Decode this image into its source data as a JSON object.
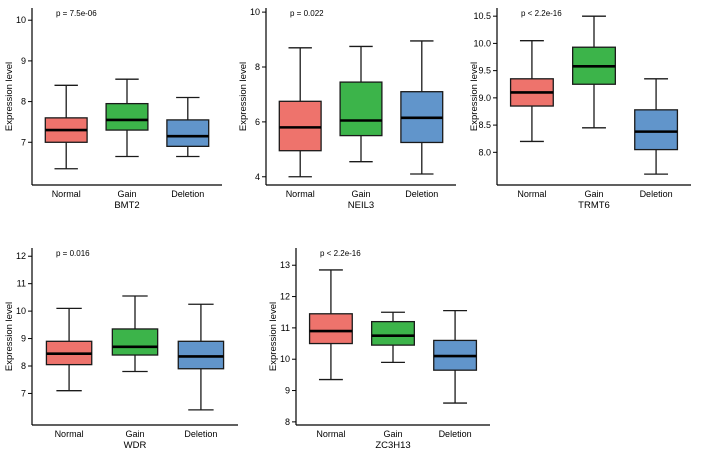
{
  "figure": {
    "background": "#ffffff",
    "group_colors": {
      "Normal": "#EE736C",
      "Gain": "#3CB44A",
      "Deletion": "#6195CB"
    }
  },
  "chart_data": [
    {
      "type": "box",
      "title": "BMT2",
      "p_label": "p = 7.5e-06",
      "ylabel": "Expression level",
      "categories": [
        "Normal",
        "Gain",
        "Deletion"
      ],
      "ylim": [
        5.95,
        10.3
      ],
      "yticks": [
        7,
        8,
        9,
        10
      ],
      "ytick_labels": [
        "7",
        "8",
        "9",
        "10"
      ],
      "grid": false,
      "series": [
        {
          "name": "Normal",
          "color": "#EE736C",
          "whisker_low": 6.35,
          "q1": 7.0,
          "median": 7.3,
          "q3": 7.6,
          "whisker_high": 8.4
        },
        {
          "name": "Gain",
          "color": "#3CB44A",
          "whisker_low": 6.65,
          "q1": 7.3,
          "median": 7.55,
          "q3": 7.95,
          "whisker_high": 8.55
        },
        {
          "name": "Deletion",
          "color": "#6195CB",
          "whisker_low": 6.65,
          "q1": 6.9,
          "median": 7.15,
          "q3": 7.55,
          "whisker_high": 8.1
        }
      ]
    },
    {
      "type": "box",
      "title": "NEIL3",
      "p_label": "p = 0.022",
      "ylabel": "Expression level",
      "categories": [
        "Normal",
        "Gain",
        "Deletion"
      ],
      "ylim": [
        3.7,
        10.15
      ],
      "yticks": [
        4,
        6,
        8,
        10
      ],
      "ytick_labels": [
        "4",
        "6",
        "8",
        "10"
      ],
      "grid": false,
      "series": [
        {
          "name": "Normal",
          "color": "#EE736C",
          "whisker_low": 4.0,
          "q1": 4.95,
          "median": 5.8,
          "q3": 6.75,
          "whisker_high": 8.7
        },
        {
          "name": "Gain",
          "color": "#3CB44A",
          "whisker_low": 4.55,
          "q1": 5.5,
          "median": 6.05,
          "q3": 7.45,
          "whisker_high": 8.75
        },
        {
          "name": "Deletion",
          "color": "#6195CB",
          "whisker_low": 4.1,
          "q1": 5.25,
          "median": 6.15,
          "q3": 7.1,
          "whisker_high": 8.95
        }
      ]
    },
    {
      "type": "box",
      "title": "TRMT6",
      "p_label": "p < 2.2e-16",
      "ylabel": "Expression level",
      "categories": [
        "Normal",
        "Gain",
        "Deletion"
      ],
      "ylim": [
        7.4,
        10.65
      ],
      "yticks": [
        8,
        8.5,
        9,
        9.5,
        10,
        10.5
      ],
      "ytick_labels": [
        "8.0",
        "8.5",
        "9.0",
        "9.5",
        "10.0",
        "10.5"
      ],
      "grid": false,
      "series": [
        {
          "name": "Normal",
          "color": "#EE736C",
          "whisker_low": 8.2,
          "q1": 8.85,
          "median": 9.1,
          "q3": 9.35,
          "whisker_high": 10.05
        },
        {
          "name": "Gain",
          "color": "#3CB44A",
          "whisker_low": 8.45,
          "q1": 9.25,
          "median": 9.58,
          "q3": 9.93,
          "whisker_high": 10.5
        },
        {
          "name": "Deletion",
          "color": "#6195CB",
          "whisker_low": 7.6,
          "q1": 8.05,
          "median": 8.38,
          "q3": 8.78,
          "whisker_high": 9.35
        }
      ]
    },
    {
      "type": "box",
      "title": "WDR",
      "p_label": "p = 0.016",
      "ylabel": "Expression level",
      "categories": [
        "Normal",
        "Gain",
        "Deletion"
      ],
      "ylim": [
        5.85,
        12.3
      ],
      "yticks": [
        7,
        8,
        9,
        10,
        11,
        12
      ],
      "ytick_labels": [
        "7",
        "8",
        "9",
        "10",
        "11",
        "12"
      ],
      "grid": false,
      "series": [
        {
          "name": "Normal",
          "color": "#EE736C",
          "whisker_low": 7.1,
          "q1": 8.05,
          "median": 8.45,
          "q3": 8.9,
          "whisker_high": 10.1
        },
        {
          "name": "Gain",
          "color": "#3CB44A",
          "whisker_low": 7.8,
          "q1": 8.4,
          "median": 8.7,
          "q3": 9.35,
          "whisker_high": 10.55
        },
        {
          "name": "Deletion",
          "color": "#6195CB",
          "whisker_low": 6.4,
          "q1": 7.9,
          "median": 8.35,
          "q3": 8.9,
          "whisker_high": 10.25
        }
      ]
    },
    {
      "type": "box",
      "title": "ZC3H13",
      "p_label": "p < 2.2e-16",
      "ylabel": "Expression level",
      "categories": [
        "Normal",
        "Gain",
        "Deletion"
      ],
      "ylim": [
        7.9,
        13.55
      ],
      "yticks": [
        8,
        9,
        10,
        11,
        12,
        13
      ],
      "ytick_labels": [
        "8",
        "9",
        "10",
        "11",
        "12",
        "13"
      ],
      "grid": false,
      "series": [
        {
          "name": "Normal",
          "color": "#EE736C",
          "whisker_low": 9.35,
          "q1": 10.5,
          "median": 10.9,
          "q3": 11.45,
          "whisker_high": 12.85
        },
        {
          "name": "Gain",
          "color": "#3CB44A",
          "whisker_low": 9.9,
          "q1": 10.45,
          "median": 10.75,
          "q3": 11.2,
          "whisker_high": 11.5
        },
        {
          "name": "Deletion",
          "color": "#6195CB",
          "whisker_low": 8.6,
          "q1": 9.65,
          "median": 10.1,
          "q3": 10.6,
          "whisker_high": 11.55
        }
      ]
    }
  ]
}
